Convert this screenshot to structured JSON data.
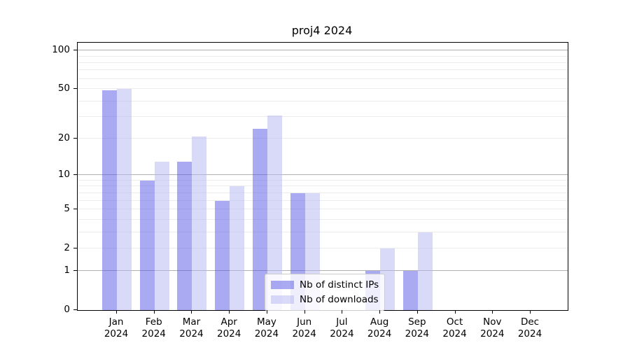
{
  "title": "proj4 2024",
  "legend": {
    "entries": [
      {
        "label": "Nb of distinct IPs"
      },
      {
        "label": "Nb of downloads"
      }
    ]
  },
  "chart_data": {
    "type": "bar",
    "title": "proj4 2024",
    "xlabel": "",
    "ylabel": "",
    "categories": [
      "Jan",
      "Feb",
      "Mar",
      "Apr",
      "May",
      "Jun",
      "Jul",
      "Aug",
      "Sep",
      "Oct",
      "Nov",
      "Dec"
    ],
    "x_tick_second_line": "2024",
    "series": [
      {
        "name": "Nb of distinct IPs",
        "color": "#5555e6",
        "alpha": 0.5,
        "values": [
          49,
          9,
          13,
          6,
          24,
          7,
          0,
          1,
          1,
          0,
          0,
          0
        ]
      },
      {
        "name": "Nb of downloads",
        "color": "#b4b4f1",
        "alpha": 0.5,
        "values": [
          50,
          13,
          21,
          8,
          31,
          7,
          0,
          2,
          3,
          0,
          0,
          0
        ]
      }
    ],
    "y_scale": "log1p",
    "y_axis_max": 115,
    "y_tick_values": [
      0,
      1,
      2,
      5,
      10,
      20,
      50,
      100
    ],
    "grid": {
      "major_values": [
        1,
        10,
        100
      ],
      "minor_values": [
        2,
        3,
        4,
        5,
        6,
        7,
        8,
        9,
        20,
        30,
        40,
        50,
        60,
        70,
        80,
        90
      ],
      "major_color": "#b0b0b0",
      "minor_color": "#ececec"
    },
    "legend_position": "lower-center-right-inside"
  }
}
